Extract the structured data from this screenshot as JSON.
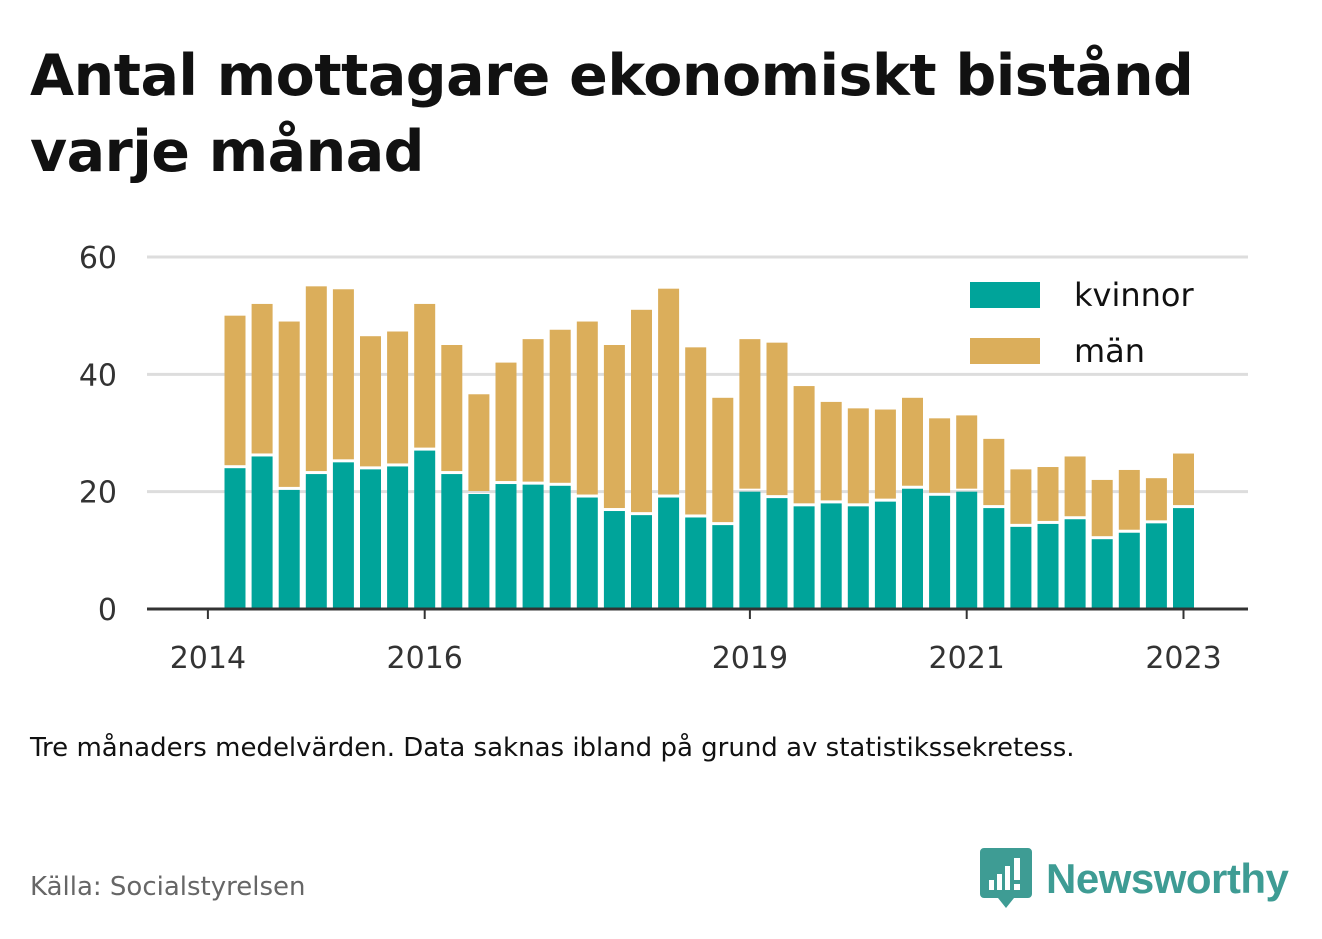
{
  "title": "Antal mottagare ekonomiskt bistånd varje månad",
  "note": "Tre månaders medelvärden. Data saknas ibland på grund av statistikssekretess.",
  "source": "Källa: Socialstyrelsen",
  "brand": {
    "name": "Newsworthy",
    "icon": "newsworthy-logo-icon",
    "color": "#3e9c94"
  },
  "chart_data": {
    "type": "bar",
    "stacked": true,
    "title": "Antal mottagare ekonomiskt bistånd varje månad",
    "xlabel": "",
    "ylabel": "",
    "ylim": [
      0,
      60
    ],
    "yticks": [
      "0",
      "20",
      "40",
      "60"
    ],
    "xticks": [
      {
        "label": "2014",
        "index": -1
      },
      {
        "label": "2016",
        "index": 7
      },
      {
        "label": "2019",
        "index": 19
      },
      {
        "label": "2021",
        "index": 27
      },
      {
        "label": "2023",
        "index": 35
      }
    ],
    "grid": true,
    "legend_position": "top-right",
    "categories": [
      "2014-Q2",
      "2014-Q3",
      "2014-Q4",
      "2015-Q1",
      "2015-Q2",
      "2015-Q3",
      "2015-Q4",
      "2016-Q1",
      "2016-Q2",
      "2016-Q3",
      "2016-Q4",
      "2017-Q1",
      "2017-Q2",
      "2017-Q3",
      "2017-Q4",
      "2018-Q1",
      "2018-Q2",
      "2018-Q3",
      "2018-Q4",
      "2019-Q1",
      "2019-Q2",
      "2019-Q3",
      "2019-Q4",
      "2020-Q1",
      "2020-Q2",
      "2020-Q3",
      "2020-Q4",
      "2021-Q1",
      "2021-Q2",
      "2021-Q3",
      "2021-Q4",
      "2022-Q1",
      "2022-Q2",
      "2022-Q3",
      "2022-Q4",
      "2023-Q1"
    ],
    "series": [
      {
        "name": "kvinnor",
        "color": "#00a49a",
        "values": [
          24,
          26,
          20.3,
          23,
          25,
          23.8,
          24.3,
          27,
          23,
          19.6,
          21.3,
          21.2,
          21,
          19,
          16.7,
          16,
          19,
          15.6,
          14.3,
          20,
          18.9,
          17.5,
          18,
          17.5,
          18.3,
          20.5,
          19.3,
          20,
          17.2,
          14,
          14.5,
          15.3,
          11.9,
          13,
          14.6,
          17.2
        ]
      },
      {
        "name": "män",
        "color": "#dbae5b",
        "values": [
          26,
          26,
          28.7,
          32,
          29.5,
          22.7,
          23,
          25,
          22,
          17,
          20.7,
          24.8,
          26.6,
          30,
          28.3,
          35,
          35.6,
          29,
          21.7,
          26,
          26.5,
          20.5,
          17.3,
          16.7,
          15.7,
          15.5,
          13.2,
          13,
          11.8,
          9.8,
          9.7,
          10.7,
          10.1,
          10.7,
          7.7,
          9.3
        ]
      }
    ]
  }
}
